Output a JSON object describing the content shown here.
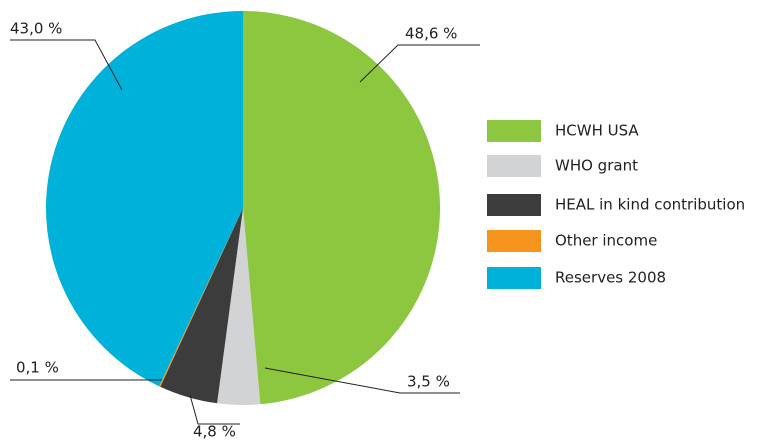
{
  "chart_data": {
    "type": "pie",
    "categories": [
      "HCWH USA",
      "WHO grant",
      "HEAL in kind contribution",
      "Other income",
      "Reserves 2008"
    ],
    "values": [
      48.6,
      3.5,
      4.8,
      0.1,
      43.0
    ],
    "value_labels": [
      "48,6 %",
      "3,5 %",
      "4,8 %",
      "0,1 %",
      "43,0 %"
    ],
    "colors": [
      "#8dc63f",
      "#d1d3d4",
      "#3c3c3c",
      "#f7941d",
      "#00b1d9"
    ]
  }
}
